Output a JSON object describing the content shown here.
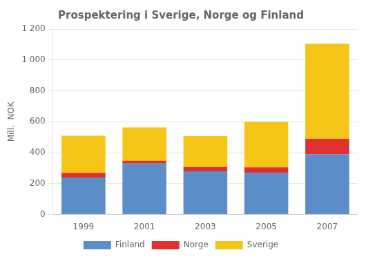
{
  "chart_data": {
    "type": "bar",
    "stacked": true,
    "title": "Prospektering i Sverige, Norge og Finland",
    "y_label": "Mill.  NOK",
    "categories": [
      "1999",
      "2001",
      "2003",
      "2005",
      "2007"
    ],
    "series": [
      {
        "name": "Finland",
        "color": "#5B8DC8",
        "values": [
          240,
          330,
          280,
          270,
          390
        ]
      },
      {
        "name": "Norge",
        "color": "#E03030",
        "values": [
          30,
          18,
          28,
          35,
          100
        ]
      },
      {
        "name": "Sverige",
        "color": "#F5C518",
        "values": [
          240,
          215,
          200,
          295,
          615
        ]
      }
    ],
    "ylim": [
      0,
      1200
    ],
    "yticks": [
      0,
      200,
      400,
      600,
      800,
      {
        "value": 1000,
        "label": "1 000"
      },
      {
        "value": 1200,
        "label": "1 200"
      }
    ],
    "grid": true,
    "legend": "bottom"
  }
}
